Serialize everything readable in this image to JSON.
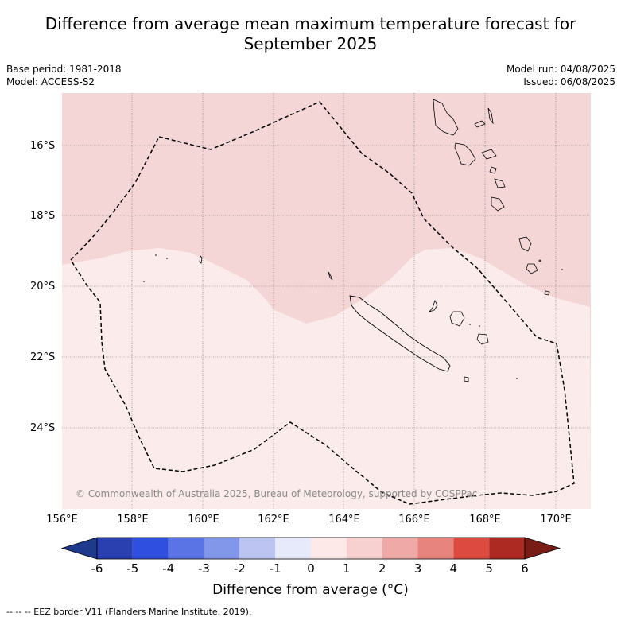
{
  "title_line1": "Difference from average mean maximum temperature forecast for",
  "title_line2": "September 2025",
  "base_period": "Base period: 1981-2018",
  "model": "Model: ACCESS-S2",
  "model_run": "Model run: 04/08/2025",
  "issued": "Issued: 06/08/2025",
  "copyright": "© Commonwealth of Australia 2025, Bureau of Meteorology, supported by COSPPac",
  "lat_labels": [
    "16°S",
    "18°S",
    "20°S",
    "22°S",
    "24°S"
  ],
  "lon_labels": [
    "156°E",
    "158°E",
    "160°E",
    "162°E",
    "164°E",
    "166°E",
    "168°E",
    "170°E"
  ],
  "colorbar": {
    "ticks": [
      "-6",
      "-5",
      "-4",
      "-3",
      "-2",
      "-1",
      "0",
      "1",
      "2",
      "3",
      "4",
      "5",
      "6"
    ],
    "colors": [
      "#1f3a8c",
      "#2a3fb0",
      "#2f4fe0",
      "#5a74e6",
      "#8296ea",
      "#bcc5f2",
      "#e7eafa",
      "#fde9e8",
      "#f7d1d0",
      "#efa9a6",
      "#e8847e",
      "#dc4a40",
      "#ad2a22",
      "#7a1c16"
    ],
    "label": "Difference from average (°C)"
  },
  "map": {
    "zones": [
      {
        "name": "anomaly-1-to-2-region",
        "range": "1 to 2",
        "color": "#f5d6d6"
      },
      {
        "name": "anomaly-0-to-1-region",
        "range": "0 to 1",
        "color": "#fcebeb"
      }
    ]
  },
  "footnote": "--  --  -- EEZ border V11 (Flanders Marine Institute, 2019)."
}
